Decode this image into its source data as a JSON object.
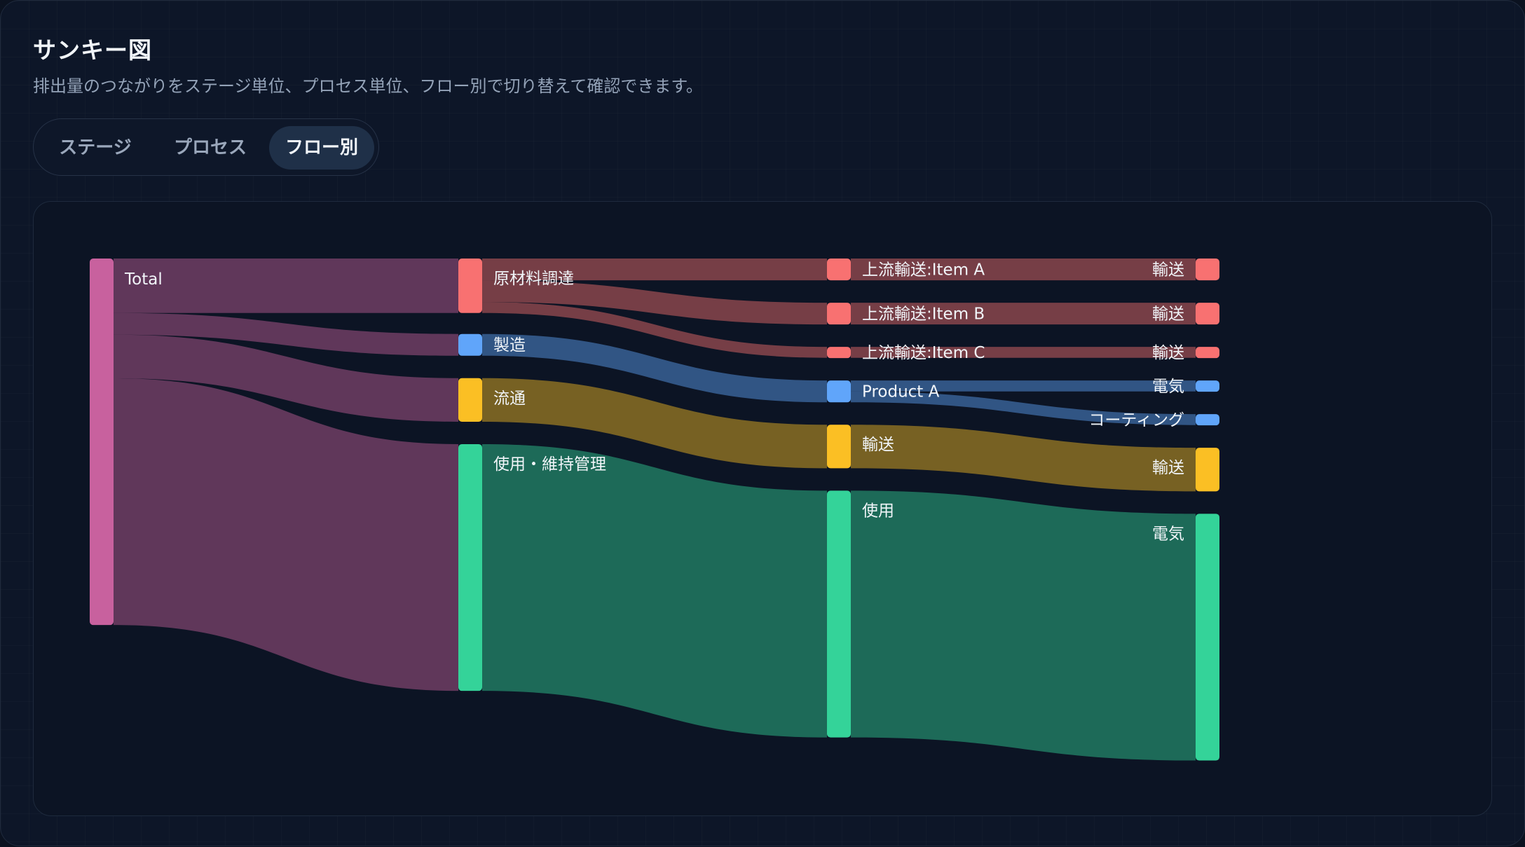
{
  "header": {
    "title": "サンキー図",
    "subtitle": "排出量のつながりをステージ単位、プロセス単位、フロー別で切り替えて確認できます。"
  },
  "tabs": [
    {
      "label": "ステージ",
      "active": false
    },
    {
      "label": "プロセス",
      "active": false
    },
    {
      "label": "フロー別",
      "active": true
    }
  ],
  "sankey": {
    "colors": {
      "total": "#c8619e",
      "raw": "#f87171",
      "mfg": "#60a5fa",
      "dist": "#fbbf24",
      "use": "#34d399"
    },
    "nodes": [
      {
        "id": "total",
        "label": "Total",
        "column": 0,
        "value": 101,
        "color": "total"
      },
      {
        "id": "raw",
        "label": "原材料調達",
        "column": 1,
        "value": 15,
        "color": "raw"
      },
      {
        "id": "mfg",
        "label": "製造",
        "column": 1,
        "value": 6,
        "color": "mfg"
      },
      {
        "id": "dist",
        "label": "流通",
        "column": 1,
        "value": 12,
        "color": "dist"
      },
      {
        "id": "use",
        "label": "使用・維持管理",
        "column": 1,
        "value": 68,
        "color": "use"
      },
      {
        "id": "itemA",
        "label": "上流輸送:Item A",
        "column": 2,
        "value": 6,
        "color": "raw"
      },
      {
        "id": "itemB",
        "label": "上流輸送:Item B",
        "column": 2,
        "value": 6,
        "color": "raw"
      },
      {
        "id": "itemC",
        "label": "上流輸送:Item C",
        "column": 2,
        "value": 3,
        "color": "raw"
      },
      {
        "id": "prodA",
        "label": "Product A",
        "column": 2,
        "value": 6,
        "color": "mfg"
      },
      {
        "id": "trans2",
        "label": "輸送",
        "column": 2,
        "value": 12,
        "color": "dist"
      },
      {
        "id": "use2",
        "label": "使用",
        "column": 2,
        "value": 68,
        "color": "use"
      },
      {
        "id": "fA",
        "label": "輸送",
        "column": 3,
        "value": 6,
        "color": "raw"
      },
      {
        "id": "fB",
        "label": "輸送",
        "column": 3,
        "value": 6,
        "color": "raw"
      },
      {
        "id": "fC",
        "label": "輸送",
        "column": 3,
        "value": 3,
        "color": "raw"
      },
      {
        "id": "elec1",
        "label": "電気",
        "column": 3,
        "value": 3,
        "color": "mfg"
      },
      {
        "id": "coat",
        "label": "コーティング",
        "column": 3,
        "value": 3,
        "color": "mfg"
      },
      {
        "id": "trans3",
        "label": "輸送",
        "column": 3,
        "value": 12,
        "color": "dist"
      },
      {
        "id": "elec2",
        "label": "電気",
        "column": 3,
        "value": 68,
        "color": "use"
      }
    ],
    "links": [
      {
        "source": "total",
        "target": "raw",
        "value": 15
      },
      {
        "source": "total",
        "target": "mfg",
        "value": 6
      },
      {
        "source": "total",
        "target": "dist",
        "value": 12
      },
      {
        "source": "total",
        "target": "use",
        "value": 68
      },
      {
        "source": "raw",
        "target": "itemA",
        "value": 6
      },
      {
        "source": "raw",
        "target": "itemB",
        "value": 6
      },
      {
        "source": "raw",
        "target": "itemC",
        "value": 3
      },
      {
        "source": "mfg",
        "target": "prodA",
        "value": 6
      },
      {
        "source": "dist",
        "target": "trans2",
        "value": 12
      },
      {
        "source": "use",
        "target": "use2",
        "value": 68
      },
      {
        "source": "itemA",
        "target": "fA",
        "value": 6
      },
      {
        "source": "itemB",
        "target": "fB",
        "value": 6
      },
      {
        "source": "itemC",
        "target": "fC",
        "value": 3
      },
      {
        "source": "prodA",
        "target": "elec1",
        "value": 3
      },
      {
        "source": "prodA",
        "target": "coat",
        "value": 3
      },
      {
        "source": "trans2",
        "target": "trans3",
        "value": 12
      },
      {
        "source": "use2",
        "target": "elec2",
        "value": 68
      }
    ]
  }
}
